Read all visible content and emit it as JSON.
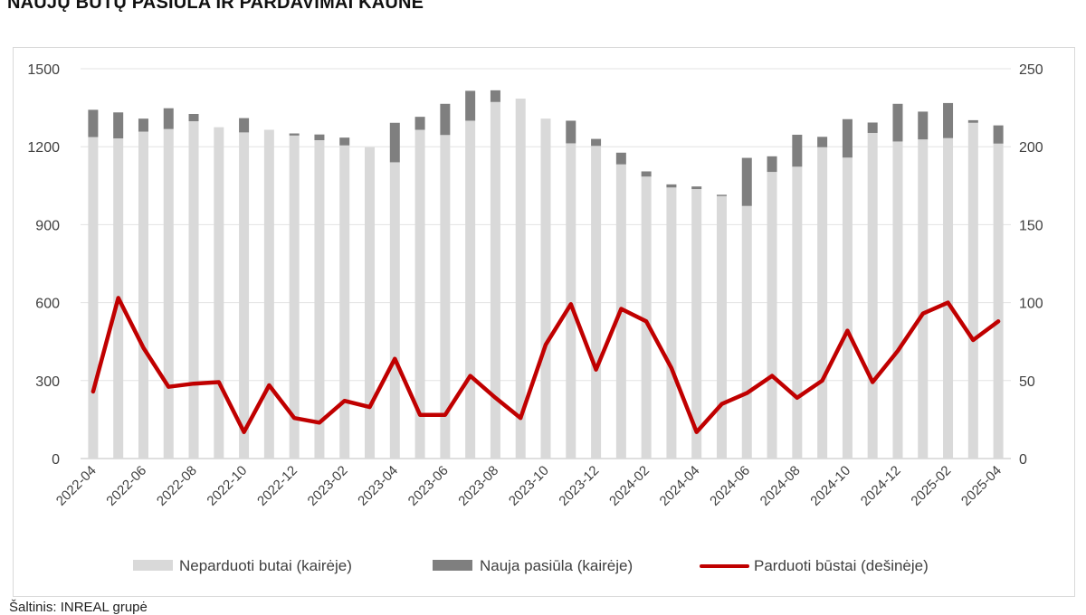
{
  "title": "NAUJŲ BŪTŲ PASIŪLA IR PARDAVIMAI KAUNE",
  "source": "Šaltinis: INREAL grupė",
  "chart_data": {
    "type": "bar",
    "title": "NAUJŲ BŪTŲ PASIŪLA IR PARDAVIMAI KAUNE",
    "stacked": true,
    "categories": [
      "2022-04",
      "2022-05",
      "2022-06",
      "2022-07",
      "2022-08",
      "2022-09",
      "2022-10",
      "2022-11",
      "2022-12",
      "2023-01",
      "2023-02",
      "2023-03",
      "2023-04",
      "2023-05",
      "2023-06",
      "2023-07",
      "2023-08",
      "2023-09",
      "2023-10",
      "2023-11",
      "2023-12",
      "2024-01",
      "2024-02",
      "2024-03",
      "2024-04",
      "2024-05",
      "2024-06",
      "2024-07",
      "2024-08",
      "2024-09",
      "2024-10",
      "2024-11",
      "2024-12",
      "2025-01",
      "2025-02",
      "2025-03",
      "2025-04"
    ],
    "x_tick_labels": [
      "2022-04",
      "2022-06",
      "2022-08",
      "2022-10",
      "2022-12",
      "2023-02",
      "2023-04",
      "2023-06",
      "2023-08",
      "2023-10",
      "2023-12",
      "2024-02",
      "2024-04",
      "2024-06",
      "2024-08",
      "2024-10",
      "2024-12",
      "2025-02",
      "2025-04"
    ],
    "series": [
      {
        "name": "Neparduoti butai (kairėje)",
        "type": "bar",
        "axis": "left",
        "color": "#d9d9d9",
        "values": [
          1237,
          1232,
          1258,
          1268,
          1298,
          1275,
          1255,
          1265,
          1243,
          1225,
          1205,
          1198,
          1140,
          1265,
          1245,
          1300,
          1372,
          1385,
          1308,
          1213,
          1203,
          1132,
          1085,
          1043,
          1037,
          1010,
          972,
          1103,
          1123,
          1198,
          1158,
          1253,
          1220,
          1228,
          1233,
          1292,
          1212
        ]
      },
      {
        "name": "Nauja pasiūla (kairėje)",
        "type": "bar",
        "axis": "left",
        "color": "#7f7f7f",
        "values": [
          105,
          100,
          50,
          80,
          28,
          0,
          55,
          0,
          8,
          22,
          30,
          0,
          152,
          50,
          120,
          115,
          45,
          0,
          0,
          87,
          27,
          45,
          20,
          12,
          10,
          5,
          185,
          60,
          123,
          40,
          148,
          40,
          145,
          107,
          135,
          10,
          70
        ]
      },
      {
        "name": "Parduoti būstai (dešinėje)",
        "type": "line",
        "axis": "right",
        "color": "#c00000",
        "values": [
          43,
          103,
          71,
          46,
          48,
          49,
          17,
          47,
          26,
          23,
          37,
          33,
          64,
          28,
          28,
          53,
          39,
          26,
          73,
          99,
          57,
          96,
          88,
          58,
          17,
          35,
          42,
          53,
          39,
          50,
          82,
          49,
          69,
          93,
          100,
          76,
          88
        ]
      }
    ],
    "y_left": {
      "ticks": [
        0,
        300,
        600,
        900,
        1200,
        1500
      ],
      "ylim": [
        0,
        1500
      ]
    },
    "y_right": {
      "ticks": [
        0,
        50,
        100,
        150,
        200,
        250
      ],
      "ylim": [
        0,
        250
      ]
    },
    "grid": true,
    "legend_position": "bottom"
  }
}
